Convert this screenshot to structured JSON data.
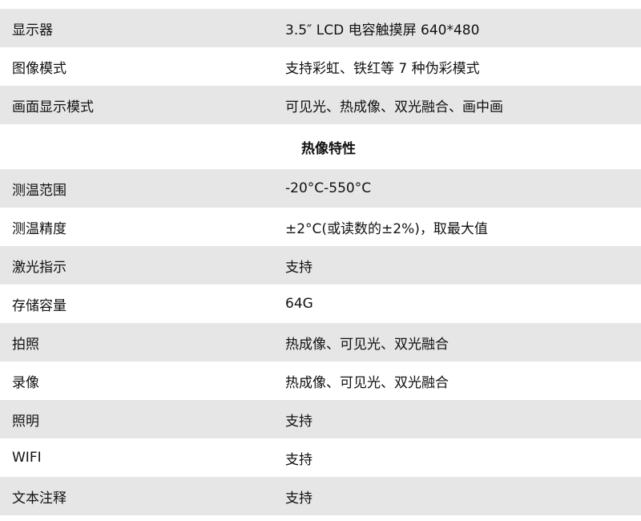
{
  "rows_top": [
    {
      "label": "显示器",
      "value": "3.5″ LCD 电容触摸屏 640*480"
    },
    {
      "label": "图像模式",
      "value": "支持彩虹、铁红等 7 种伪彩模式"
    },
    {
      "label": "画面显示模式",
      "value": "可见光、热成像、双光融合、画中画"
    }
  ],
  "section_title": "热像特性",
  "rows_bottom": [
    {
      "label": "测温范围",
      "value": "-20°C-550°C"
    },
    {
      "label": "测温精度",
      "value": "±2°C(或读数的±2%)，取最大值"
    },
    {
      "label": "激光指示",
      "value": "支持"
    },
    {
      "label": "存储容量",
      "value": "64G"
    },
    {
      "label": "拍照",
      "value": "热成像、可见光、双光融合"
    },
    {
      "label": "录像",
      "value": "热成像、可见光、双光融合"
    },
    {
      "label": "照明",
      "value": "支持"
    },
    {
      "label": "WIFI",
      "value": "支持"
    },
    {
      "label": "文本注释",
      "value": "支持"
    }
  ]
}
